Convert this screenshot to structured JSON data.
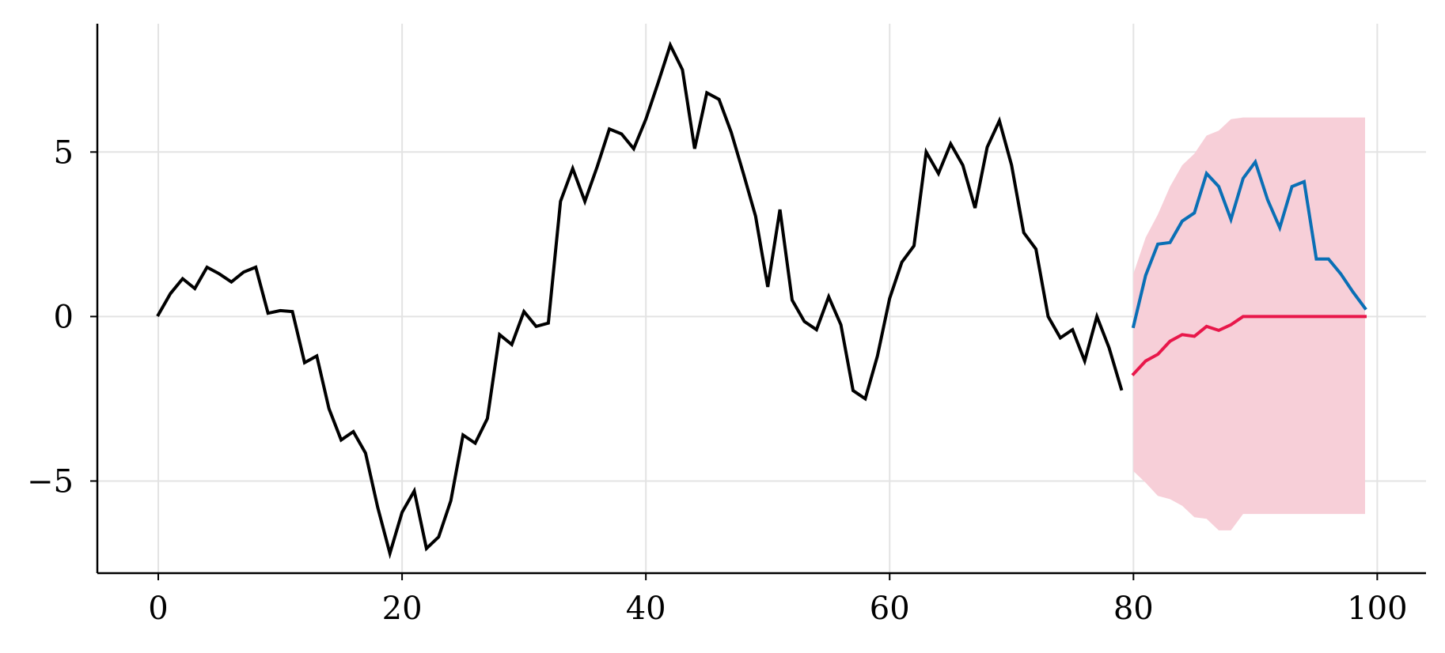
{
  "chart_data": {
    "type": "line",
    "title": "",
    "xlabel": "",
    "ylabel": "",
    "xlim": [
      -5,
      104
    ],
    "ylim": [
      -7.8,
      8.9
    ],
    "grid": true,
    "legend": "none",
    "xticks": [
      0,
      20,
      40,
      60,
      80,
      100
    ],
    "yticks": [
      -5,
      0,
      5
    ],
    "xtick_labels": [
      "0",
      "20",
      "40",
      "60",
      "80",
      "100"
    ],
    "ytick_labels": [
      "−5",
      "0",
      "5"
    ],
    "series": [
      {
        "role": "observed",
        "color": "#000000",
        "x0": 0,
        "values": [
          0.05,
          0.7,
          1.15,
          0.85,
          1.5,
          1.3,
          1.05,
          1.35,
          1.5,
          0.1,
          0.18,
          0.15,
          -1.4,
          -1.2,
          -2.8,
          -3.75,
          -3.5,
          -4.15,
          -5.8,
          -7.2,
          -5.95,
          -5.3,
          -7.05,
          -6.7,
          -5.6,
          -3.6,
          -3.85,
          -3.1,
          -0.55,
          -0.85,
          0.15,
          -0.3,
          -0.2,
          3.5,
          4.5,
          3.5,
          4.55,
          5.7,
          5.55,
          5.1,
          6.0,
          7.1,
          8.25,
          7.5,
          5.1,
          6.8,
          6.6,
          5.6,
          4.35,
          3.05,
          0.9,
          3.25,
          0.5,
          -0.15,
          -0.4,
          0.6,
          -0.25,
          -2.25,
          -2.5,
          -1.2,
          0.55,
          1.65,
          2.15,
          5.0,
          4.35,
          5.25,
          4.6,
          3.3,
          5.15,
          5.95,
          4.6,
          2.55,
          2.05,
          0.0,
          -0.65,
          -0.4,
          -1.35,
          0.0,
          -0.95,
          -2.2
        ]
      },
      {
        "role": "forecast-mean",
        "color": "#e8174a",
        "x0": 80,
        "values": [
          -1.75,
          -1.35,
          -1.15,
          -0.75,
          -0.55,
          -0.6,
          -0.3,
          -0.42,
          -0.25,
          0.0,
          0.0,
          0.0,
          0.0,
          0.0,
          0.0,
          0.0,
          0.0,
          0.0,
          0.0,
          0.0
        ]
      },
      {
        "role": "sample-path",
        "color": "#0a6fb5",
        "x0": 80,
        "values": [
          -0.3,
          1.25,
          2.2,
          2.25,
          2.9,
          3.15,
          4.35,
          3.95,
          2.95,
          4.2,
          4.7,
          3.55,
          2.7,
          3.95,
          4.1,
          1.75,
          1.75,
          1.3,
          0.75,
          0.25
        ]
      }
    ],
    "interval": {
      "role": "forecast-band",
      "color": "#f7cfd8",
      "x0": 80,
      "upper": [
        1.3,
        2.4,
        3.1,
        3.95,
        4.6,
        4.95,
        5.5,
        5.65,
        6.0,
        6.05,
        6.05,
        6.05,
        6.05,
        6.05,
        6.05,
        6.05,
        6.05,
        6.05,
        6.05,
        6.05
      ],
      "lower": [
        -4.7,
        -5.05,
        -5.45,
        -5.55,
        -5.75,
        -6.1,
        -6.15,
        -6.5,
        -6.5,
        -6.0,
        -6.0,
        -6.0,
        -6.0,
        -6.0,
        -6.0,
        -6.0,
        -6.0,
        -6.0,
        -6.0,
        -6.0
      ]
    }
  }
}
